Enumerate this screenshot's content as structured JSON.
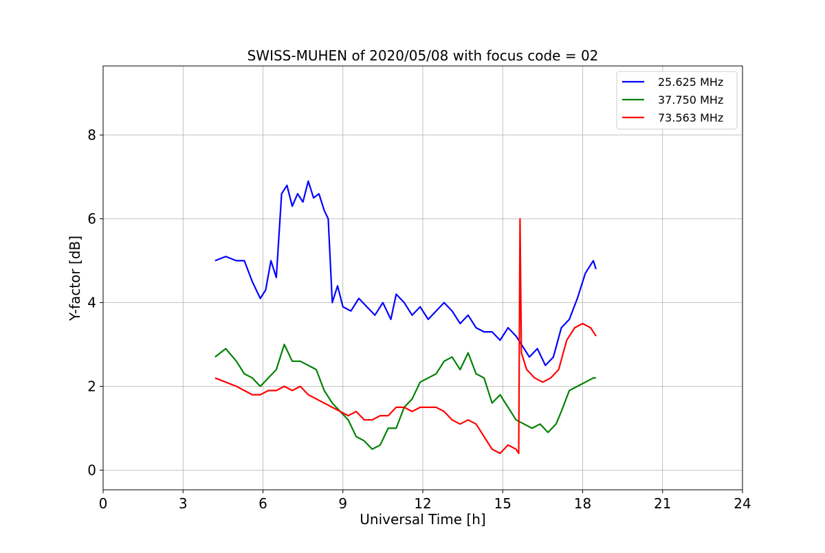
{
  "chart_data": {
    "type": "line",
    "title": "SWISS-MUHEN of 2020/05/08 with focus code = 02",
    "xlabel": "Universal Time [h]",
    "ylabel": "Y-factor [dB]",
    "xlim": [
      0,
      24
    ],
    "ylim": [
      -0.47,
      9.65
    ],
    "xticks": [
      0,
      3,
      6,
      9,
      12,
      15,
      18,
      21,
      24
    ],
    "yticks": [
      0,
      2,
      4,
      6,
      8
    ],
    "grid": true,
    "legend_position": "top-right",
    "series": [
      {
        "name": "25.625 MHz",
        "color": "#0000ff",
        "x": [
          4.2,
          4.6,
          5.0,
          5.3,
          5.6,
          5.9,
          6.1,
          6.3,
          6.5,
          6.7,
          6.9,
          7.1,
          7.3,
          7.5,
          7.7,
          7.9,
          8.1,
          8.3,
          8.45,
          8.6,
          8.8,
          9.0,
          9.3,
          9.6,
          9.9,
          10.2,
          10.5,
          10.8,
          11.0,
          11.3,
          11.6,
          11.9,
          12.2,
          12.5,
          12.8,
          13.1,
          13.4,
          13.7,
          14.0,
          14.3,
          14.6,
          14.9,
          15.2,
          15.5,
          15.8,
          16.0,
          16.3,
          16.6,
          16.9,
          17.2,
          17.5,
          17.8,
          18.1,
          18.4,
          18.5
        ],
        "y": [
          5.0,
          5.1,
          5.0,
          5.0,
          4.5,
          4.1,
          4.3,
          5.0,
          4.6,
          6.6,
          6.8,
          6.3,
          6.6,
          6.4,
          6.9,
          6.5,
          6.6,
          6.2,
          6.0,
          4.0,
          4.4,
          3.9,
          3.8,
          4.1,
          3.9,
          3.7,
          4.0,
          3.6,
          4.2,
          4.0,
          3.7,
          3.9,
          3.6,
          3.8,
          4.0,
          3.8,
          3.5,
          3.7,
          3.4,
          3.3,
          3.3,
          3.1,
          3.4,
          3.2,
          2.9,
          2.7,
          2.9,
          2.5,
          2.7,
          3.4,
          3.6,
          4.1,
          4.7,
          5.0,
          4.8
        ]
      },
      {
        "name": "37.750 MHz",
        "color": "#008000",
        "x": [
          4.2,
          4.6,
          5.0,
          5.3,
          5.6,
          5.9,
          6.2,
          6.5,
          6.8,
          7.1,
          7.4,
          7.7,
          8.0,
          8.3,
          8.6,
          8.9,
          9.2,
          9.5,
          9.8,
          10.1,
          10.4,
          10.7,
          11.0,
          11.3,
          11.6,
          11.9,
          12.2,
          12.5,
          12.8,
          13.1,
          13.4,
          13.7,
          14.0,
          14.3,
          14.6,
          14.9,
          15.2,
          15.5,
          15.8,
          16.1,
          16.4,
          16.7,
          17.0,
          17.2,
          17.5,
          17.8,
          18.1,
          18.4,
          18.5
        ],
        "y": [
          2.7,
          2.9,
          2.6,
          2.3,
          2.2,
          2.0,
          2.2,
          2.4,
          3.0,
          2.6,
          2.6,
          2.5,
          2.4,
          1.9,
          1.6,
          1.4,
          1.2,
          0.8,
          0.7,
          0.5,
          0.6,
          1.0,
          1.0,
          1.5,
          1.7,
          2.1,
          2.2,
          2.3,
          2.6,
          2.7,
          2.4,
          2.8,
          2.3,
          2.2,
          1.6,
          1.8,
          1.5,
          1.2,
          1.1,
          1.0,
          1.1,
          0.9,
          1.1,
          1.4,
          1.9,
          2.0,
          2.1,
          2.2,
          2.2
        ]
      },
      {
        "name": "73.563 MHz",
        "color": "#ff0000",
        "x": [
          4.2,
          4.6,
          5.0,
          5.3,
          5.6,
          5.9,
          6.2,
          6.5,
          6.8,
          7.1,
          7.4,
          7.7,
          8.0,
          8.3,
          8.6,
          8.9,
          9.2,
          9.5,
          9.8,
          10.1,
          10.4,
          10.7,
          11.0,
          11.3,
          11.6,
          11.9,
          12.2,
          12.5,
          12.8,
          13.1,
          13.4,
          13.7,
          14.0,
          14.3,
          14.6,
          14.9,
          15.2,
          15.5,
          15.6,
          15.65,
          15.7,
          15.9,
          16.2,
          16.5,
          16.8,
          17.1,
          17.4,
          17.7,
          18.0,
          18.3,
          18.5
        ],
        "y": [
          2.2,
          2.1,
          2.0,
          1.9,
          1.8,
          1.8,
          1.9,
          1.9,
          2.0,
          1.9,
          2.0,
          1.8,
          1.7,
          1.6,
          1.5,
          1.4,
          1.3,
          1.4,
          1.2,
          1.2,
          1.3,
          1.3,
          1.5,
          1.5,
          1.4,
          1.5,
          1.5,
          1.5,
          1.4,
          1.2,
          1.1,
          1.2,
          1.1,
          0.8,
          0.5,
          0.4,
          0.6,
          0.5,
          0.4,
          6.0,
          2.8,
          2.4,
          2.2,
          2.1,
          2.2,
          2.4,
          3.1,
          3.4,
          3.5,
          3.4,
          3.2
        ]
      }
    ]
  }
}
